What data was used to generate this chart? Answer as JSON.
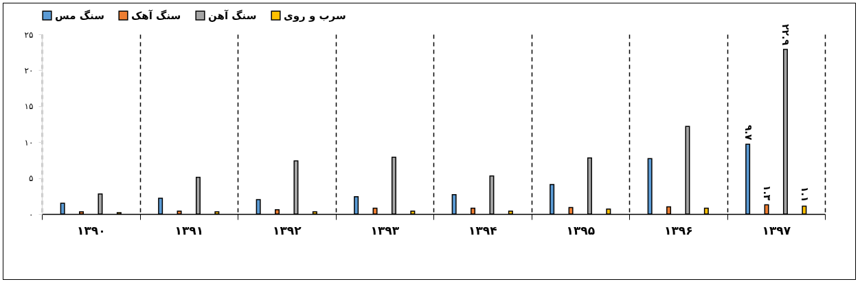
{
  "chart_data": {
    "type": "bar",
    "categories": [
      "۱۳۹۰",
      "۱۳۹۱",
      "۱۳۹۲",
      "۱۳۹۳",
      "۱۳۹۴",
      "۱۳۹۵",
      "۱۳۹۶",
      "۱۳۹۷"
    ],
    "series": [
      {
        "name": "سنگ مس",
        "color": "#5b9bd5",
        "values": [
          1.5,
          2.2,
          2.0,
          2.4,
          2.7,
          4.1,
          7.7,
          9.7
        ],
        "value_labels": [
          null,
          null,
          null,
          null,
          null,
          null,
          null,
          "۹.۷"
        ]
      },
      {
        "name": "سنگ آهک",
        "color": "#ed7d31",
        "values": [
          0.3,
          0.4,
          0.6,
          0.8,
          0.8,
          0.9,
          1.0,
          1.3
        ],
        "value_labels": [
          null,
          null,
          null,
          null,
          null,
          null,
          null,
          "۱.۳"
        ]
      },
      {
        "name": "سنگ آهن",
        "color": "#a5a5a5",
        "values": [
          2.8,
          5.1,
          7.4,
          7.9,
          5.3,
          7.8,
          12.2,
          22.9
        ],
        "value_labels": [
          null,
          null,
          null,
          null,
          null,
          null,
          null,
          "۲۲.۹"
        ]
      },
      {
        "name": "سرب و روی",
        "color": "#ffc000",
        "values": [
          0.2,
          0.3,
          0.3,
          0.4,
          0.4,
          0.7,
          0.8,
          1.1
        ],
        "value_labels": [
          null,
          null,
          null,
          null,
          null,
          null,
          null,
          "۱.۱"
        ]
      }
    ],
    "ylim": [
      0,
      25
    ],
    "yticks": [
      {
        "value": 0,
        "label": "۰"
      },
      {
        "value": 5,
        "label": "۵"
      },
      {
        "value": 10,
        "label": "۱۰"
      },
      {
        "value": 15,
        "label": "۱۵"
      },
      {
        "value": 20,
        "label": "۲۰"
      },
      {
        "value": 25,
        "label": "۲۵"
      }
    ],
    "grid": "x",
    "legend": "top"
  }
}
